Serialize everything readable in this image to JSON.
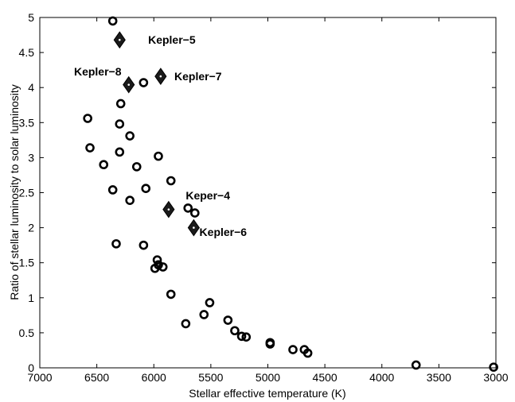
{
  "chart_data": {
    "type": "scatter",
    "title": "",
    "xlabel": "Stellar effective temperature (K)",
    "ylabel": "Ratio of stellar luminosity to solar luminosity",
    "xlim": [
      7000,
      3000
    ],
    "ylim": [
      0,
      5
    ],
    "x_reversed": true,
    "grid": false,
    "xticks": [
      7000,
      6500,
      6000,
      5500,
      5000,
      4500,
      4000,
      3500,
      3000
    ],
    "xtick_labels": [
      "7000",
      "6500",
      "6000",
      "5500",
      "5000",
      "4500",
      "4000",
      "3500",
      "3000"
    ],
    "yticks": [
      0,
      0.5,
      1,
      1.5,
      2,
      2.5,
      3,
      3.5,
      4,
      4.5,
      5
    ],
    "ytick_labels": [
      "0",
      "0.5",
      "1",
      "1.5",
      "2",
      "2.5",
      "3",
      "3.5",
      "4",
      "4.5",
      "5"
    ],
    "series": [
      {
        "marker": "circle",
        "points": [
          {
            "x": 6360,
            "y": 4.95
          },
          {
            "x": 6090,
            "y": 4.07
          },
          {
            "x": 6290,
            "y": 3.77
          },
          {
            "x": 6580,
            "y": 3.56
          },
          {
            "x": 6300,
            "y": 3.48
          },
          {
            "x": 6210,
            "y": 3.31
          },
          {
            "x": 6560,
            "y": 3.14
          },
          {
            "x": 6300,
            "y": 3.08
          },
          {
            "x": 5960,
            "y": 3.02
          },
          {
            "x": 6440,
            "y": 2.9
          },
          {
            "x": 6150,
            "y": 2.87
          },
          {
            "x": 5850,
            "y": 2.67
          },
          {
            "x": 6070,
            "y": 2.56
          },
          {
            "x": 6360,
            "y": 2.54
          },
          {
            "x": 6210,
            "y": 2.39
          },
          {
            "x": 5700,
            "y": 2.28
          },
          {
            "x": 5640,
            "y": 2.21
          },
          {
            "x": 6330,
            "y": 1.77
          },
          {
            "x": 6090,
            "y": 1.75
          },
          {
            "x": 5970,
            "y": 1.54
          },
          {
            "x": 5960,
            "y": 1.47
          },
          {
            "x": 5920,
            "y": 1.44
          },
          {
            "x": 5990,
            "y": 1.42
          },
          {
            "x": 5850,
            "y": 1.05
          },
          {
            "x": 5510,
            "y": 0.93
          },
          {
            "x": 5560,
            "y": 0.76
          },
          {
            "x": 5350,
            "y": 0.68
          },
          {
            "x": 5720,
            "y": 0.63
          },
          {
            "x": 5290,
            "y": 0.53
          },
          {
            "x": 5230,
            "y": 0.45
          },
          {
            "x": 5190,
            "y": 0.44
          },
          {
            "x": 4980,
            "y": 0.36
          },
          {
            "x": 4980,
            "y": 0.34
          },
          {
            "x": 4780,
            "y": 0.26
          },
          {
            "x": 4680,
            "y": 0.26
          },
          {
            "x": 4650,
            "y": 0.21
          },
          {
            "x": 3700,
            "y": 0.04
          },
          {
            "x": 3020,
            "y": 0.01
          }
        ]
      },
      {
        "marker": "diamond",
        "points": [
          {
            "x": 6300,
            "y": 4.68
          },
          {
            "x": 5940,
            "y": 4.16
          },
          {
            "x": 6220,
            "y": 4.04
          },
          {
            "x": 5870,
            "y": 2.26
          },
          {
            "x": 5650,
            "y": 2.0
          }
        ]
      }
    ],
    "annotations": [
      {
        "text": "Kepler−5",
        "x": 6050,
        "y": 4.68
      },
      {
        "text": "Kepler−7",
        "x": 5820,
        "y": 4.16
      },
      {
        "text": "Kepler−8",
        "x": 6700,
        "y": 4.23
      },
      {
        "text": "Keper−4",
        "x": 5720,
        "y": 2.46
      },
      {
        "text": "Kepler−6",
        "x": 5600,
        "y": 1.94
      }
    ]
  }
}
